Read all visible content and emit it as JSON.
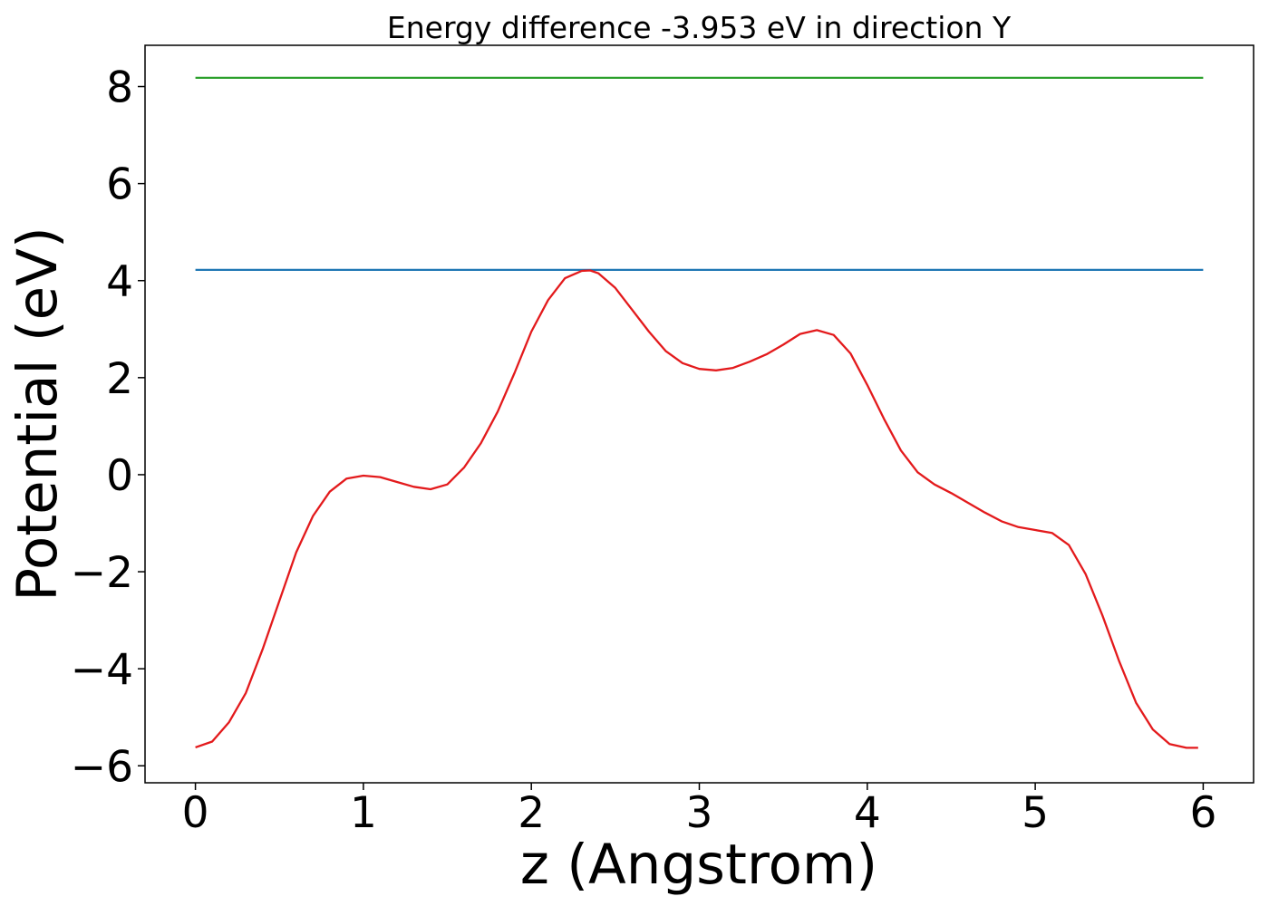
{
  "chart_data": {
    "type": "line",
    "title": "Energy difference -3.953 eV in direction Y",
    "xlabel": "z (Angstrom)",
    "ylabel": "Potential (eV)",
    "xlim": [
      -0.3,
      6.3
    ],
    "ylim": [
      -6.35,
      8.85
    ],
    "xticks": [
      0,
      1,
      2,
      3,
      4,
      5,
      6
    ],
    "yticks": [
      -6,
      -4,
      -2,
      0,
      2,
      4,
      6,
      8
    ],
    "xtick_labels": [
      "0",
      "1",
      "2",
      "3",
      "4",
      "5",
      "6"
    ],
    "ytick_labels": [
      "−6",
      "−4",
      "−2",
      "0",
      "2",
      "4",
      "6",
      "8"
    ],
    "grid": false,
    "series": [
      {
        "color": "#2ca02c",
        "x": [
          0,
          6
        ],
        "y": [
          8.18,
          8.18
        ]
      },
      {
        "color": "#1f77b4",
        "x": [
          0,
          6
        ],
        "y": [
          4.22,
          4.22
        ]
      },
      {
        "color": "#e31a1c",
        "x": [
          0,
          0.1,
          0.2,
          0.3,
          0.4,
          0.5,
          0.6,
          0.7,
          0.8,
          0.9,
          1.0,
          1.1,
          1.2,
          1.3,
          1.4,
          1.5,
          1.6,
          1.7,
          1.8,
          1.9,
          2.0,
          2.1,
          2.2,
          2.3,
          2.35,
          2.4,
          2.5,
          2.6,
          2.7,
          2.8,
          2.9,
          3.0,
          3.1,
          3.2,
          3.3,
          3.4,
          3.5,
          3.6,
          3.7,
          3.8,
          3.9,
          4.0,
          4.1,
          4.2,
          4.3,
          4.4,
          4.5,
          4.6,
          4.7,
          4.8,
          4.9,
          5.0,
          5.1,
          5.2,
          5.3,
          5.4,
          5.5,
          5.6,
          5.7,
          5.8,
          5.9,
          5.97
        ],
        "y": [
          -5.62,
          -5.5,
          -5.1,
          -4.5,
          -3.6,
          -2.6,
          -1.6,
          -0.85,
          -0.35,
          -0.08,
          -0.02,
          -0.05,
          -0.15,
          -0.25,
          -0.3,
          -0.2,
          0.15,
          0.65,
          1.3,
          2.1,
          2.95,
          3.6,
          4.05,
          4.2,
          4.21,
          4.15,
          3.85,
          3.4,
          2.95,
          2.55,
          2.3,
          2.18,
          2.15,
          2.2,
          2.33,
          2.48,
          2.68,
          2.9,
          2.98,
          2.88,
          2.5,
          1.85,
          1.15,
          0.5,
          0.05,
          -0.2,
          -0.38,
          -0.58,
          -0.78,
          -0.96,
          -1.08,
          -1.14,
          -1.2,
          -1.45,
          -2.05,
          -2.9,
          -3.85,
          -4.7,
          -5.25,
          -5.55,
          -5.63,
          -5.63
        ]
      }
    ]
  }
}
